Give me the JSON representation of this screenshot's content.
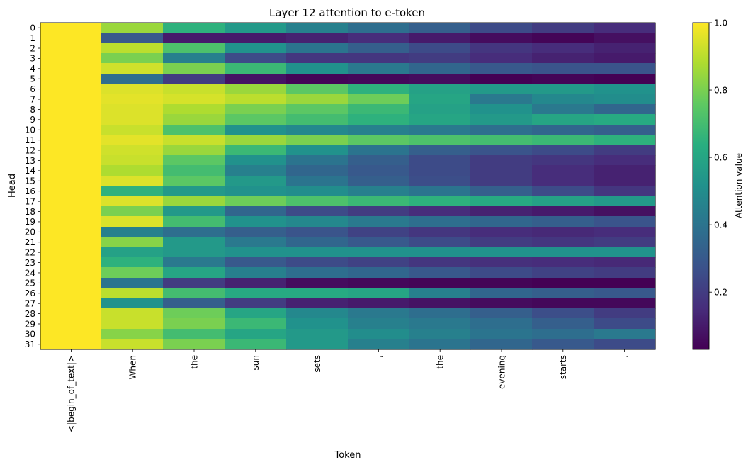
{
  "chart_data": {
    "type": "heatmap",
    "title": "Layer 12 attention to e-token",
    "xlabel": "Token",
    "ylabel": "Head",
    "colorbar_label": "Attention value",
    "colorbar_ticks": [
      0.2,
      0.4,
      0.6,
      0.8,
      1.0
    ],
    "colorbar_tick_labels": [
      "0.2",
      "0.4",
      "0.6",
      "0.8",
      "1.0"
    ],
    "vmin": 0.03,
    "vmax": 1.0,
    "colormap": "viridis",
    "x_categories": [
      "<|begin_of_text|>",
      "When",
      "the",
      "sun",
      "sets",
      ",",
      "the",
      "evening",
      "starts",
      "."
    ],
    "y_categories": [
      "0",
      "1",
      "2",
      "3",
      "4",
      "5",
      "6",
      "7",
      "8",
      "9",
      "10",
      "11",
      "12",
      "13",
      "14",
      "15",
      "16",
      "17",
      "18",
      "19",
      "20",
      "21",
      "22",
      "23",
      "24",
      "25",
      "26",
      "27",
      "28",
      "29",
      "30",
      "31"
    ],
    "values": [
      [
        1.0,
        0.85,
        0.65,
        0.55,
        0.45,
        0.38,
        0.32,
        0.25,
        0.2,
        0.15
      ],
      [
        1.0,
        0.3,
        0.1,
        0.1,
        0.12,
        0.15,
        0.1,
        0.06,
        0.04,
        0.07
      ],
      [
        1.0,
        0.9,
        0.72,
        0.52,
        0.4,
        0.32,
        0.25,
        0.18,
        0.15,
        0.12
      ],
      [
        1.0,
        0.8,
        0.45,
        0.25,
        0.18,
        0.18,
        0.2,
        0.15,
        0.12,
        0.1
      ],
      [
        1.0,
        0.93,
        0.8,
        0.68,
        0.52,
        0.42,
        0.35,
        0.3,
        0.28,
        0.28
      ],
      [
        1.0,
        0.38,
        0.2,
        0.08,
        0.04,
        0.05,
        0.06,
        0.03,
        0.04,
        0.03
      ],
      [
        1.0,
        0.95,
        0.92,
        0.85,
        0.75,
        0.65,
        0.58,
        0.55,
        0.55,
        0.52
      ],
      [
        1.0,
        0.96,
        0.94,
        0.9,
        0.85,
        0.78,
        0.6,
        0.42,
        0.48,
        0.5
      ],
      [
        1.0,
        0.95,
        0.88,
        0.8,
        0.75,
        0.68,
        0.58,
        0.52,
        0.42,
        0.35
      ],
      [
        1.0,
        0.95,
        0.85,
        0.75,
        0.7,
        0.65,
        0.6,
        0.55,
        0.6,
        0.62
      ],
      [
        1.0,
        0.92,
        0.72,
        0.52,
        0.48,
        0.45,
        0.42,
        0.38,
        0.35,
        0.32
      ],
      [
        1.0,
        0.96,
        0.92,
        0.85,
        0.8,
        0.75,
        0.72,
        0.7,
        0.68,
        0.65
      ],
      [
        1.0,
        0.93,
        0.85,
        0.68,
        0.52,
        0.4,
        0.32,
        0.28,
        0.25,
        0.2
      ],
      [
        1.0,
        0.92,
        0.75,
        0.52,
        0.4,
        0.32,
        0.25,
        0.2,
        0.18,
        0.15
      ],
      [
        1.0,
        0.88,
        0.7,
        0.45,
        0.35,
        0.3,
        0.25,
        0.2,
        0.15,
        0.12
      ],
      [
        1.0,
        0.95,
        0.75,
        0.55,
        0.4,
        0.32,
        0.26,
        0.2,
        0.15,
        0.12
      ],
      [
        1.0,
        0.65,
        0.55,
        0.52,
        0.5,
        0.45,
        0.4,
        0.32,
        0.25,
        0.18
      ],
      [
        1.0,
        0.95,
        0.85,
        0.78,
        0.72,
        0.68,
        0.65,
        0.62,
        0.58,
        0.55
      ],
      [
        1.0,
        0.8,
        0.55,
        0.35,
        0.25,
        0.2,
        0.15,
        0.12,
        0.1,
        0.07
      ],
      [
        1.0,
        0.95,
        0.7,
        0.52,
        0.48,
        0.42,
        0.38,
        0.35,
        0.32,
        0.28
      ],
      [
        1.0,
        0.45,
        0.38,
        0.32,
        0.28,
        0.22,
        0.18,
        0.15,
        0.14,
        0.15
      ],
      [
        1.0,
        0.82,
        0.55,
        0.42,
        0.35,
        0.3,
        0.25,
        0.2,
        0.18,
        0.2
      ],
      [
        1.0,
        0.58,
        0.55,
        0.52,
        0.52,
        0.52,
        0.52,
        0.52,
        0.52,
        0.52
      ],
      [
        1.0,
        0.65,
        0.42,
        0.3,
        0.25,
        0.22,
        0.18,
        0.16,
        0.15,
        0.14
      ],
      [
        1.0,
        0.78,
        0.6,
        0.45,
        0.38,
        0.35,
        0.3,
        0.25,
        0.22,
        0.2
      ],
      [
        1.0,
        0.4,
        0.2,
        0.12,
        0.06,
        0.05,
        0.04,
        0.04,
        0.03,
        0.03
      ],
      [
        1.0,
        0.9,
        0.7,
        0.62,
        0.62,
        0.6,
        0.45,
        0.35,
        0.32,
        0.3
      ],
      [
        1.0,
        0.52,
        0.32,
        0.2,
        0.12,
        0.1,
        0.08,
        0.06,
        0.05,
        0.05
      ],
      [
        1.0,
        0.92,
        0.78,
        0.6,
        0.48,
        0.42,
        0.38,
        0.32,
        0.26,
        0.2
      ],
      [
        1.0,
        0.92,
        0.8,
        0.68,
        0.52,
        0.45,
        0.42,
        0.38,
        0.32,
        0.25
      ],
      [
        1.0,
        0.82,
        0.7,
        0.6,
        0.55,
        0.5,
        0.45,
        0.4,
        0.38,
        0.42
      ],
      [
        1.0,
        0.92,
        0.8,
        0.68,
        0.55,
        0.45,
        0.4,
        0.35,
        0.3,
        0.25
      ]
    ]
  }
}
